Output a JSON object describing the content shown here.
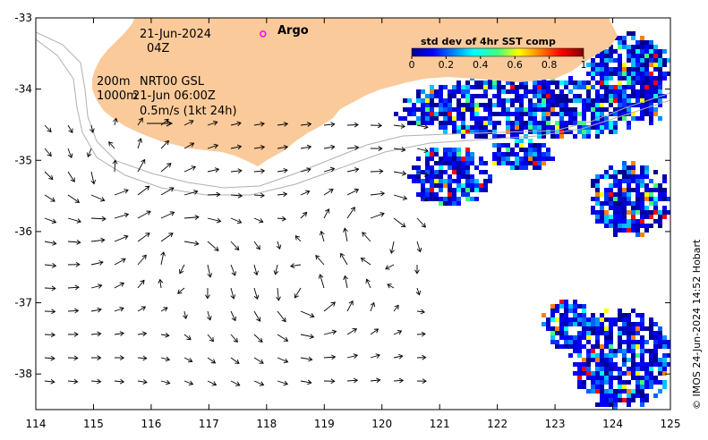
{
  "map": {
    "date_label": "21-Jun-2024",
    "hour_label": "04Z",
    "contour_label_200": "200m",
    "contour_label_1000": "1000m",
    "product_label": "NRT00 GSL",
    "product_time_label": "21-Jun 06:00Z",
    "scale_arrow_label": "0.5m/s (1kt 24h)",
    "argo_label": "Argo",
    "credit": "© IMOS 24-Jun-2024 14:52 Hobart",
    "lon_range": [
      114,
      125
    ],
    "lat_range": [
      -38.5,
      -33
    ],
    "x_ticks": [
      "114",
      "115",
      "116",
      "117",
      "118",
      "119",
      "120",
      "121",
      "122",
      "123",
      "124",
      "125"
    ],
    "y_ticks": [
      "-33",
      "-34",
      "-35",
      "-36",
      "-37",
      "-38"
    ],
    "argo_float": {
      "lon": 118.0,
      "lat": -33.2
    },
    "colors": {
      "land": "#fbca9a",
      "argo_marker": "#ff00ff",
      "contour": "#aaaaaa"
    }
  },
  "colorbar": {
    "title": "std dev of 4hr SST comp",
    "ticks": [
      "0",
      "0.2",
      "0.4",
      "0.6",
      "0.8",
      "1"
    ],
    "range": [
      0,
      1
    ]
  }
}
